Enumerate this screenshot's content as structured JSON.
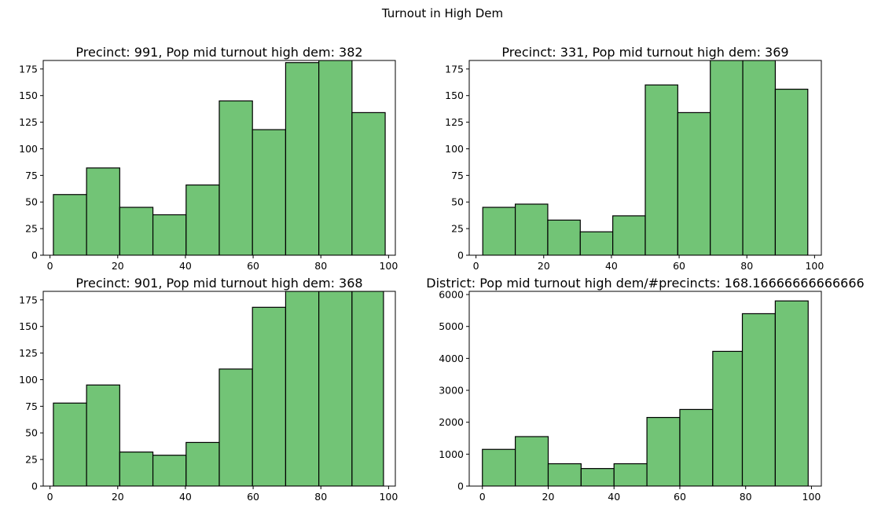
{
  "figure": {
    "title": "Turnout in High Dem",
    "bar_color": "#72c476",
    "edge_color": "#000000"
  },
  "chart_data": [
    {
      "type": "bar",
      "title": "Precinct: 991, Pop mid turnout high dem: 382",
      "bin_edges": [
        1,
        10.8,
        20.6,
        30.4,
        40.2,
        50,
        59.8,
        69.6,
        79.4,
        89.2,
        99
      ],
      "values": [
        57,
        82,
        45,
        38,
        66,
        145,
        118,
        181,
        190,
        134
      ],
      "xlim": [
        -2,
        102
      ],
      "ylim": [
        0,
        183
      ],
      "xticks": [
        0,
        20,
        40,
        60,
        80,
        100
      ],
      "yticks": [
        0,
        25,
        50,
        75,
        100,
        125,
        150,
        175
      ]
    },
    {
      "type": "bar",
      "title": "Precinct: 331, Pop mid turnout high dem: 369",
      "bin_edges": [
        2,
        11.6,
        21.2,
        30.8,
        40.4,
        50,
        59.6,
        69.2,
        78.8,
        88.4,
        98
      ],
      "values": [
        45,
        48,
        33,
        22,
        37,
        160,
        134,
        195,
        200,
        156
      ],
      "xlim": [
        -2,
        102
      ],
      "ylim": [
        0,
        183
      ],
      "xticks": [
        0,
        20,
        40,
        60,
        80,
        100
      ],
      "yticks": [
        0,
        25,
        50,
        75,
        100,
        125,
        150,
        175
      ]
    },
    {
      "type": "bar",
      "title": "Precinct: 901, Pop mid turnout high dem: 368",
      "bin_edges": [
        1,
        10.8,
        20.6,
        30.4,
        40.2,
        50,
        59.8,
        69.6,
        79.4,
        89.2,
        98.5
      ],
      "values": [
        78,
        95,
        32,
        29,
        41,
        110,
        168,
        190,
        200,
        195
      ],
      "xlim": [
        -2,
        102
      ],
      "ylim": [
        0,
        183
      ],
      "xticks": [
        0,
        20,
        40,
        60,
        80,
        100
      ],
      "yticks": [
        0,
        25,
        50,
        75,
        100,
        125,
        150,
        175
      ]
    },
    {
      "type": "bar",
      "title": "District: Pop mid turnout high dem/#precincts: 168.16666666666666",
      "bin_edges": [
        0,
        10,
        20,
        30,
        40,
        50,
        60,
        70,
        79,
        89,
        99
      ],
      "values": [
        1150,
        1550,
        700,
        550,
        700,
        2150,
        2400,
        4220,
        5400,
        5800
      ],
      "xlim": [
        -4,
        103
      ],
      "ylim": [
        0,
        6100
      ],
      "xticks": [
        0,
        20,
        40,
        60,
        80,
        100
      ],
      "yticks": [
        0,
        1000,
        2000,
        3000,
        4000,
        5000,
        6000
      ]
    }
  ]
}
